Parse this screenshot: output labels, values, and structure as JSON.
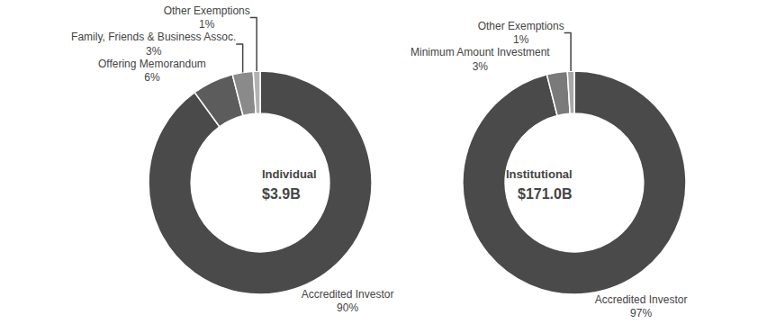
{
  "chart_data": [
    {
      "type": "pie",
      "title": "Individual",
      "subtitle": "$3.9B",
      "categories": [
        "Accredited Investor",
        "Offering Memorandum",
        "Family, Friends & Business Assoc.",
        "Other Exemptions"
      ],
      "values": [
        90,
        6,
        3,
        1
      ],
      "value_labels": [
        "90%",
        "6%",
        "3%",
        "1%"
      ],
      "colors": [
        "#4a4a4a",
        "#5c5c5c",
        "#8a8a8a",
        "#b2b2b2"
      ]
    },
    {
      "type": "pie",
      "title": "Institutional",
      "subtitle": "$171.0B",
      "categories": [
        "Accredited Investor",
        "Minimum Amount Investment",
        "Other Exemptions"
      ],
      "values": [
        97,
        3,
        1
      ],
      "value_labels": [
        "97%",
        "3%",
        "1%"
      ],
      "colors": [
        "#4a4a4a",
        "#7a7a7a",
        "#a8a8a8"
      ]
    }
  ]
}
